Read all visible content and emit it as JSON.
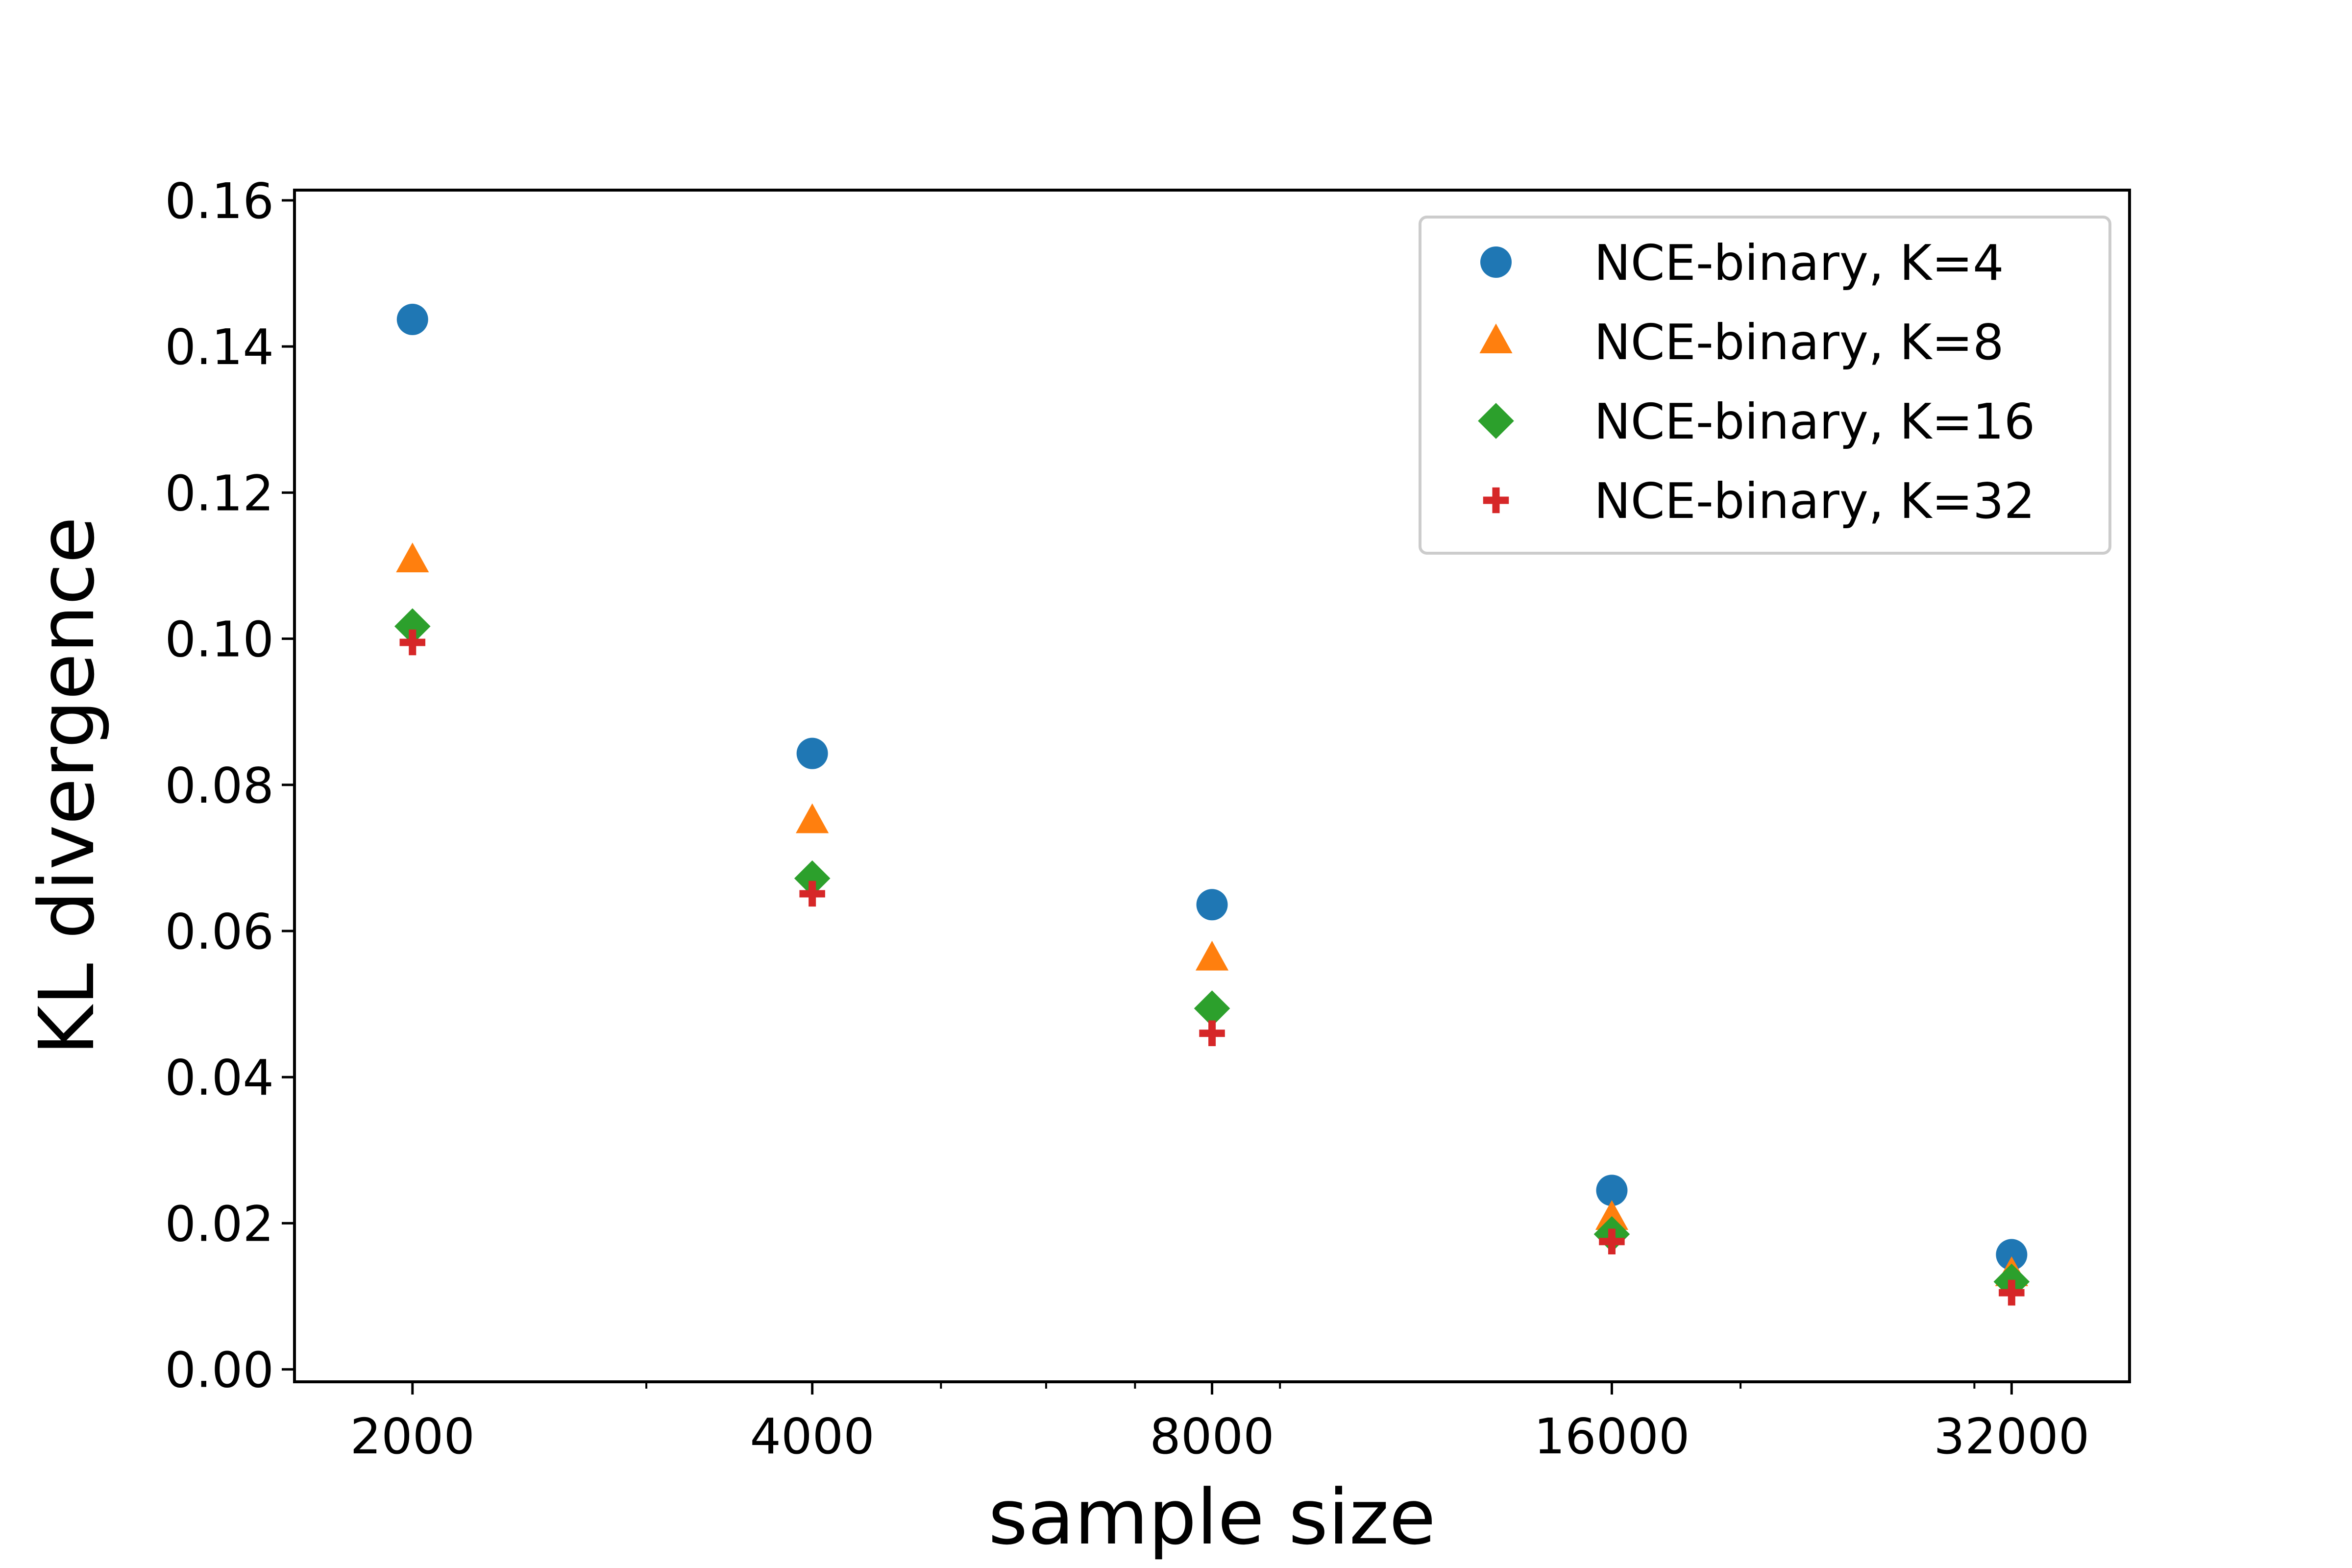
{
  "chart_data": {
    "type": "scatter",
    "title": "",
    "xlabel": "sample size",
    "ylabel": "KL divergence",
    "xscale": "log2",
    "x": [
      2000,
      4000,
      8000,
      16000,
      32000
    ],
    "xticks": [
      "2000",
      "4000",
      "8000",
      "16000",
      "32000"
    ],
    "yticks": [
      "0.00",
      "0.02",
      "0.04",
      "0.06",
      "0.08",
      "0.10",
      "0.12",
      "0.14",
      "0.16"
    ],
    "ylim": [
      -0.0017,
      0.1614
    ],
    "xlim": [
      1630,
      39260
    ],
    "grid": false,
    "legend_position": "top-right",
    "series": [
      {
        "name": "NCE-binary, K=4",
        "marker": "circle",
        "color": "#1f77b4",
        "values": [
          0.1437,
          0.0843,
          0.0636,
          0.0245,
          0.0157
        ]
      },
      {
        "name": "NCE-binary, K=8",
        "marker": "triangle",
        "color": "#ff7f0e",
        "values": [
          0.1107,
          0.075,
          0.0562,
          0.0207,
          0.013
        ]
      },
      {
        "name": "NCE-binary, K=16",
        "marker": "diamond",
        "color": "#2ca02c",
        "values": [
          0.1017,
          0.0672,
          0.0494,
          0.0185,
          0.012
        ]
      },
      {
        "name": "NCE-binary, K=32",
        "marker": "plus",
        "color": "#d62728",
        "values": [
          0.0995,
          0.0651,
          0.046,
          0.0175,
          0.0105
        ]
      }
    ]
  }
}
